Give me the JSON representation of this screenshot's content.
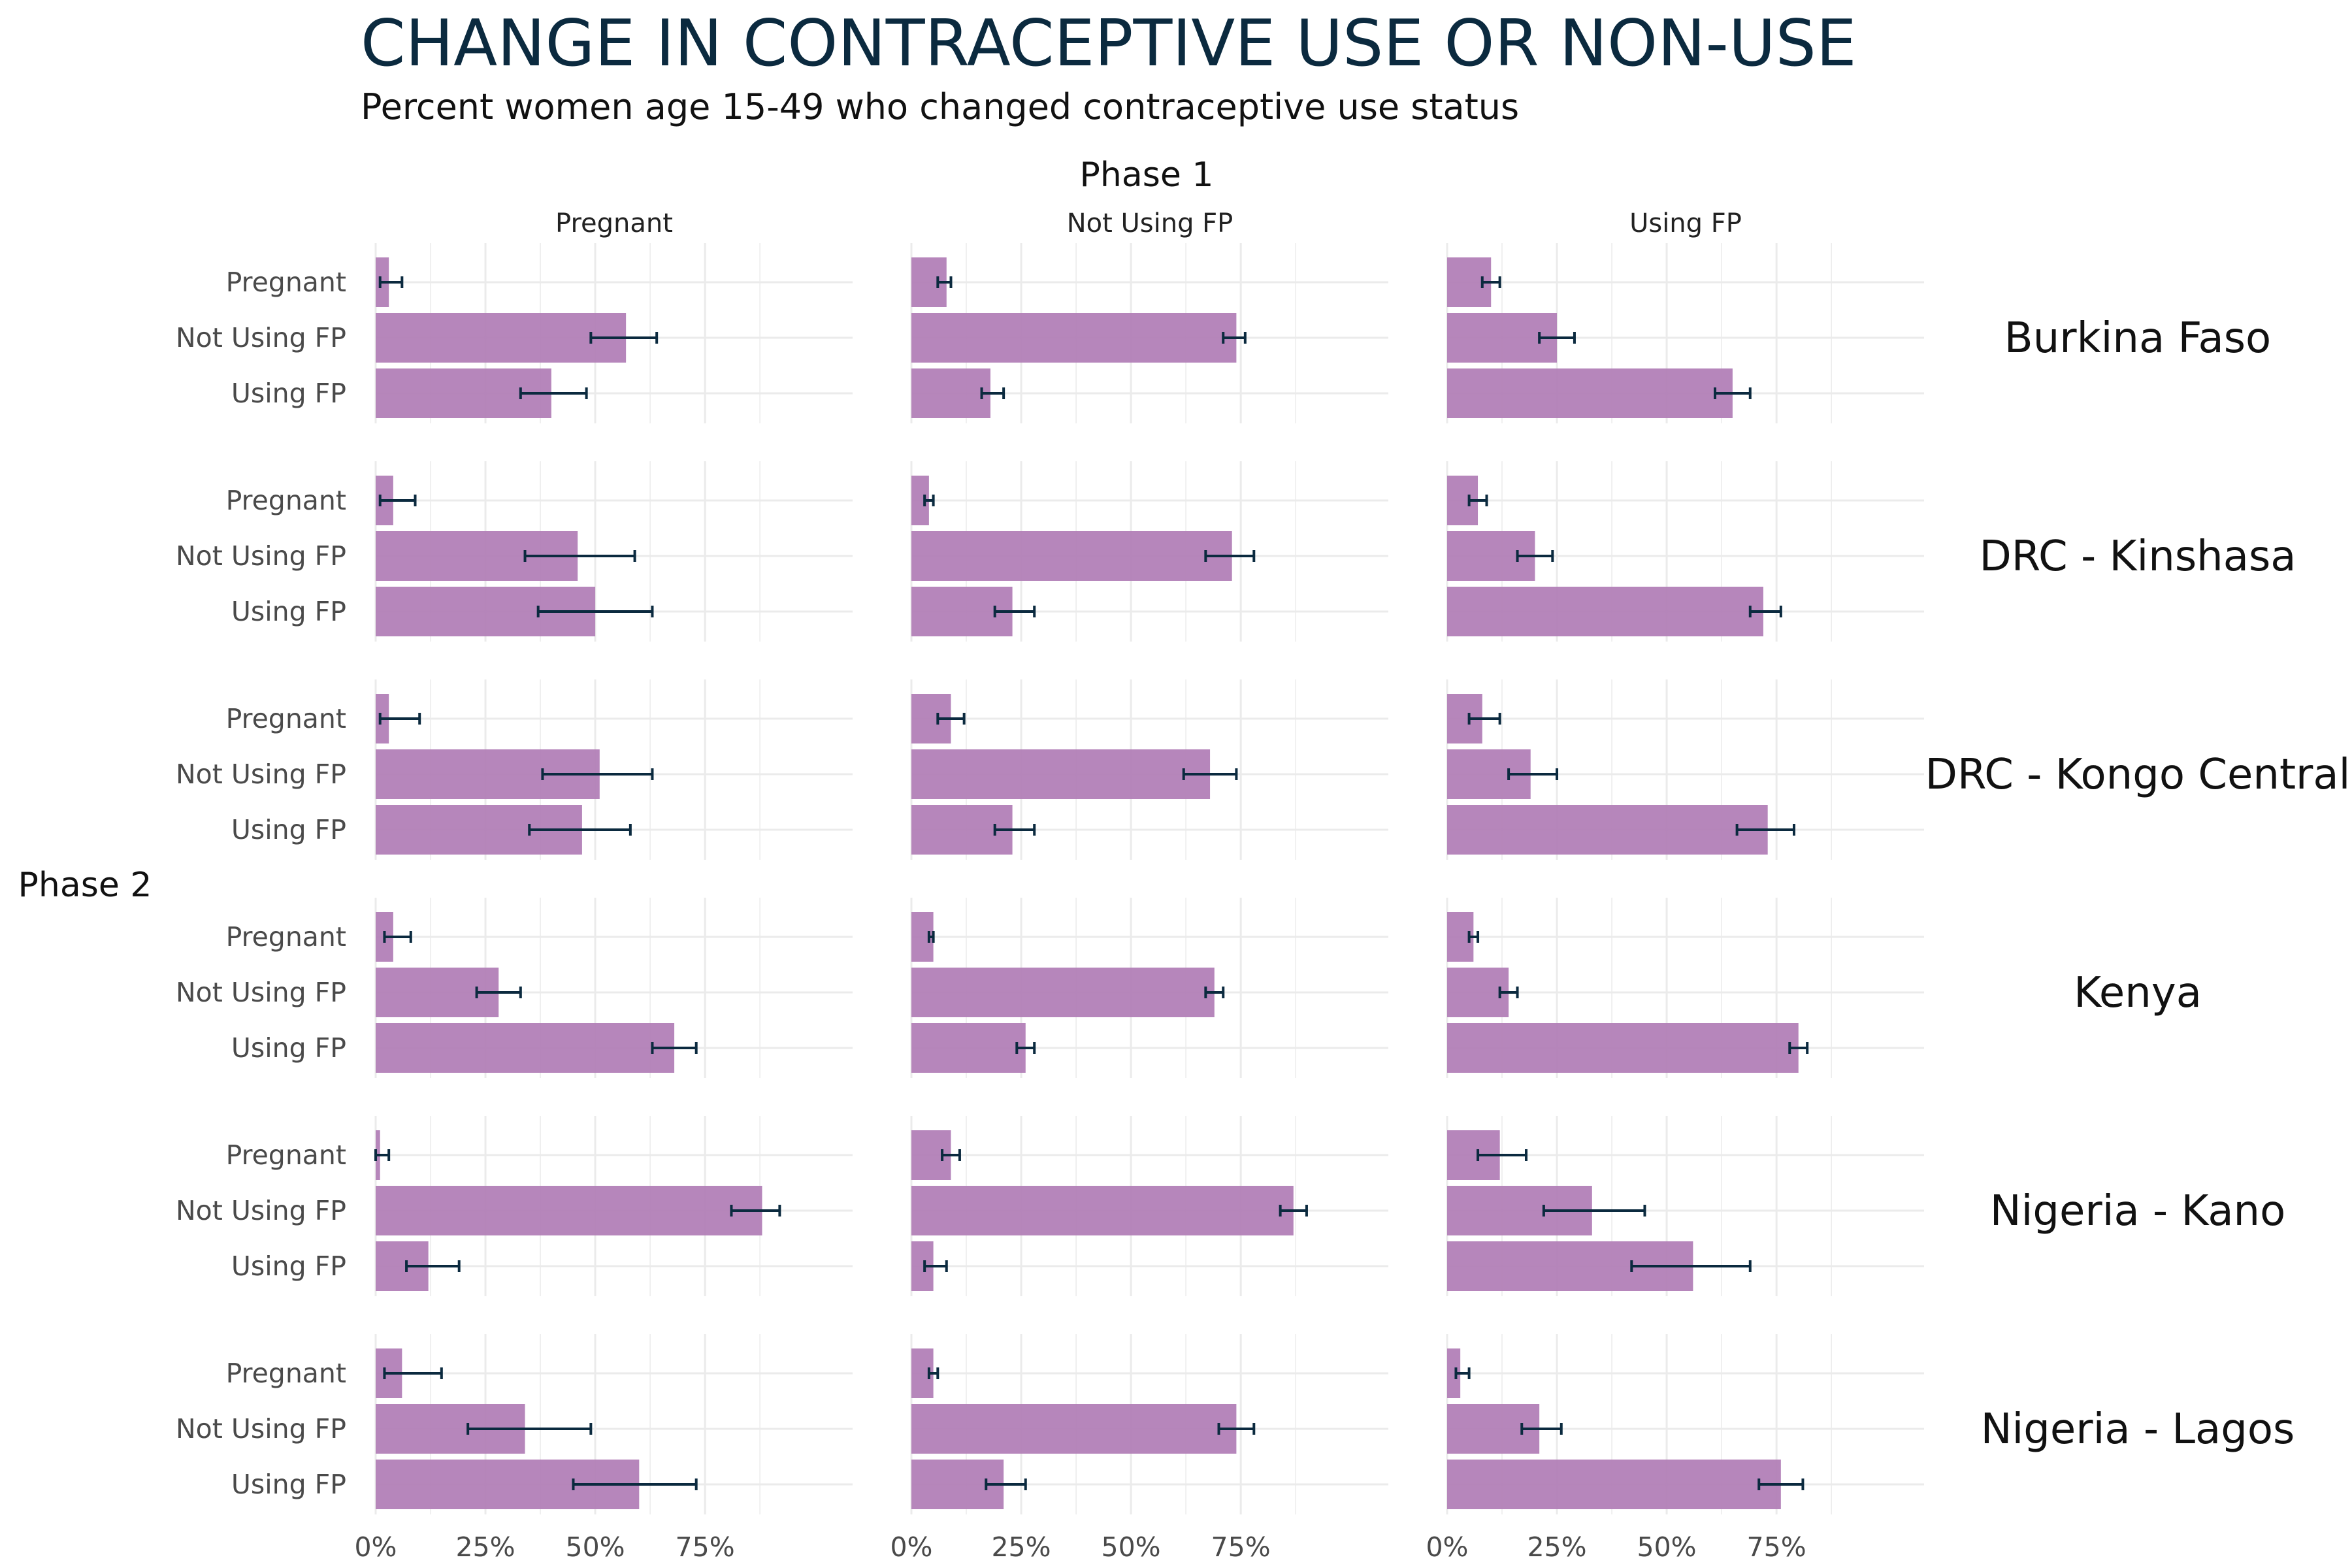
{
  "title": "CHANGE IN CONTRACEPTIVE USE OR NON-USE",
  "subtitle": "Percent women age 15-49 who changed contraceptive use status",
  "colors": {
    "bar": "#b07cb5",
    "errorbar": "#0b2a3f",
    "grid": "#ebebeb",
    "title": "#0b2a3f"
  },
  "chart_data": {
    "type": "bar",
    "orientation": "horizontal",
    "column_facet_label": "Phase 1",
    "row_facet_label": "Phase 2",
    "phase1_categories": [
      "Pregnant",
      "Not Using FP",
      "Using FP"
    ],
    "phase2_categories": [
      "Pregnant",
      "Not Using FP",
      "Using FP"
    ],
    "x_ticks": [
      "0%",
      "25%",
      "50%",
      "75%"
    ],
    "x_tick_values": [
      0,
      25,
      50,
      75
    ],
    "xlim": [
      0,
      97
    ],
    "grid": true,
    "countries": [
      {
        "name": "Burkina Faso",
        "panels": [
          {
            "phase1": "Pregnant",
            "values": [
              3,
              57,
              40
            ],
            "lower": [
              1,
              49,
              33
            ],
            "upper": [
              6,
              64,
              48
            ]
          },
          {
            "phase1": "Not Using FP",
            "values": [
              8,
              74,
              18
            ],
            "lower": [
              6,
              71,
              16
            ],
            "upper": [
              9,
              76,
              21
            ]
          },
          {
            "phase1": "Using FP",
            "values": [
              10,
              25,
              65
            ],
            "lower": [
              8,
              21,
              61
            ],
            "upper": [
              12,
              29,
              69
            ]
          }
        ]
      },
      {
        "name": "DRC - Kinshasa",
        "panels": [
          {
            "phase1": "Pregnant",
            "values": [
              4,
              46,
              50
            ],
            "lower": [
              1,
              34,
              37
            ],
            "upper": [
              9,
              59,
              63
            ]
          },
          {
            "phase1": "Not Using FP",
            "values": [
              4,
              73,
              23
            ],
            "lower": [
              3,
              67,
              19
            ],
            "upper": [
              5,
              78,
              28
            ]
          },
          {
            "phase1": "Using FP",
            "values": [
              7,
              20,
              72
            ],
            "lower": [
              5,
              16,
              69
            ],
            "upper": [
              9,
              24,
              76
            ]
          }
        ]
      },
      {
        "name": "DRC - Kongo Central",
        "panels": [
          {
            "phase1": "Pregnant",
            "values": [
              3,
              51,
              47
            ],
            "lower": [
              1,
              38,
              35
            ],
            "upper": [
              10,
              63,
              58
            ]
          },
          {
            "phase1": "Not Using FP",
            "values": [
              9,
              68,
              23
            ],
            "lower": [
              6,
              62,
              19
            ],
            "upper": [
              12,
              74,
              28
            ]
          },
          {
            "phase1": "Using FP",
            "values": [
              8,
              19,
              73
            ],
            "lower": [
              5,
              14,
              66
            ],
            "upper": [
              12,
              25,
              79
            ]
          }
        ]
      },
      {
        "name": "Kenya",
        "panels": [
          {
            "phase1": "Pregnant",
            "values": [
              4,
              28,
              68
            ],
            "lower": [
              2,
              23,
              63
            ],
            "upper": [
              8,
              33,
              73
            ]
          },
          {
            "phase1": "Not Using FP",
            "values": [
              5,
              69,
              26
            ],
            "lower": [
              4,
              67,
              24
            ],
            "upper": [
              5,
              71,
              28
            ]
          },
          {
            "phase1": "Using FP",
            "values": [
              6,
              14,
              80
            ],
            "lower": [
              5,
              12,
              78
            ],
            "upper": [
              7,
              16,
              82
            ]
          }
        ]
      },
      {
        "name": "Nigeria - Kano",
        "panels": [
          {
            "phase1": "Pregnant",
            "values": [
              1,
              88,
              12
            ],
            "lower": [
              0,
              81,
              7
            ],
            "upper": [
              3,
              92,
              19
            ]
          },
          {
            "phase1": "Not Using FP",
            "values": [
              9,
              87,
              5
            ],
            "lower": [
              7,
              84,
              3
            ],
            "upper": [
              11,
              90,
              8
            ]
          },
          {
            "phase1": "Using FP",
            "values": [
              12,
              33,
              56
            ],
            "lower": [
              7,
              22,
              42
            ],
            "upper": [
              18,
              45,
              69
            ]
          }
        ]
      },
      {
        "name": "Nigeria - Lagos",
        "panels": [
          {
            "phase1": "Pregnant",
            "values": [
              6,
              34,
              60
            ],
            "lower": [
              2,
              21,
              45
            ],
            "upper": [
              15,
              49,
              73
            ]
          },
          {
            "phase1": "Not Using FP",
            "values": [
              5,
              74,
              21
            ],
            "lower": [
              4,
              70,
              17
            ],
            "upper": [
              6,
              78,
              26
            ]
          },
          {
            "phase1": "Using FP",
            "values": [
              3,
              21,
              76
            ],
            "lower": [
              2,
              17,
              71
            ],
            "upper": [
              5,
              26,
              81
            ]
          }
        ]
      }
    ]
  }
}
